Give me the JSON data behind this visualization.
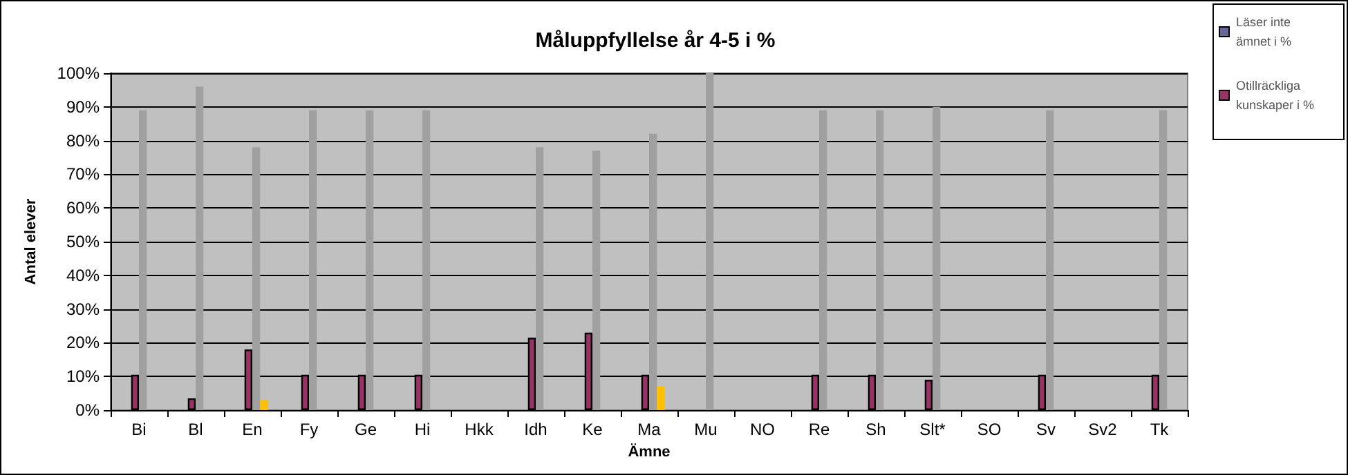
{
  "chart_data": {
    "type": "bar",
    "title": "Måluppfyllelse år 4-5 i %",
    "xlabel": "Ämne",
    "ylabel": "Antal elever",
    "categories": [
      "Bi",
      "Bl",
      "En",
      "Fy",
      "Ge",
      "Hi",
      "Hkk",
      "Idh",
      "Ke",
      "Ma",
      "Mu",
      "NO",
      "Re",
      "Sh",
      "Slt*",
      "SO",
      "Sv",
      "Sv2",
      "Tk"
    ],
    "series": [
      {
        "name": "Läser inte ämnet i %",
        "color": "#666699",
        "values": [
          null,
          null,
          null,
          null,
          null,
          null,
          null,
          null,
          null,
          null,
          null,
          null,
          null,
          null,
          null,
          null,
          null,
          null,
          null
        ]
      },
      {
        "name": "Otillräckliga kunskaper i %",
        "color": "#993366",
        "values": [
          10.5,
          3.5,
          18,
          10.5,
          10.5,
          10.5,
          null,
          21.5,
          23,
          10.5,
          null,
          null,
          10.5,
          10.5,
          9,
          null,
          10.5,
          null,
          10.5
        ]
      },
      {
        "color": "#a0a0a0",
        "values": [
          89,
          96,
          78,
          89,
          89,
          89,
          null,
          78,
          77,
          82,
          100,
          null,
          89,
          89,
          90,
          null,
          89,
          null,
          89
        ]
      },
      {
        "color": "#ffc000",
        "values": [
          null,
          null,
          3,
          null,
          null,
          null,
          null,
          null,
          null,
          7,
          null,
          null,
          null,
          null,
          null,
          null,
          null,
          null,
          null
        ]
      }
    ],
    "ylim": [
      0,
      100
    ],
    "yticks": [
      {
        "value": 0,
        "label": "0%"
      },
      {
        "value": 10,
        "label": "10%"
      },
      {
        "value": 20,
        "label": "20%"
      },
      {
        "value": 30,
        "label": "30%"
      },
      {
        "value": 40,
        "label": "40%"
      },
      {
        "value": 50,
        "label": "50%"
      },
      {
        "value": 60,
        "label": "60%"
      },
      {
        "value": 70,
        "label": "70%"
      },
      {
        "value": 80,
        "label": "80%"
      },
      {
        "value": 90,
        "label": "90%"
      },
      {
        "value": 100,
        "label": "100%"
      }
    ],
    "grid": "y",
    "legend": "top right"
  }
}
